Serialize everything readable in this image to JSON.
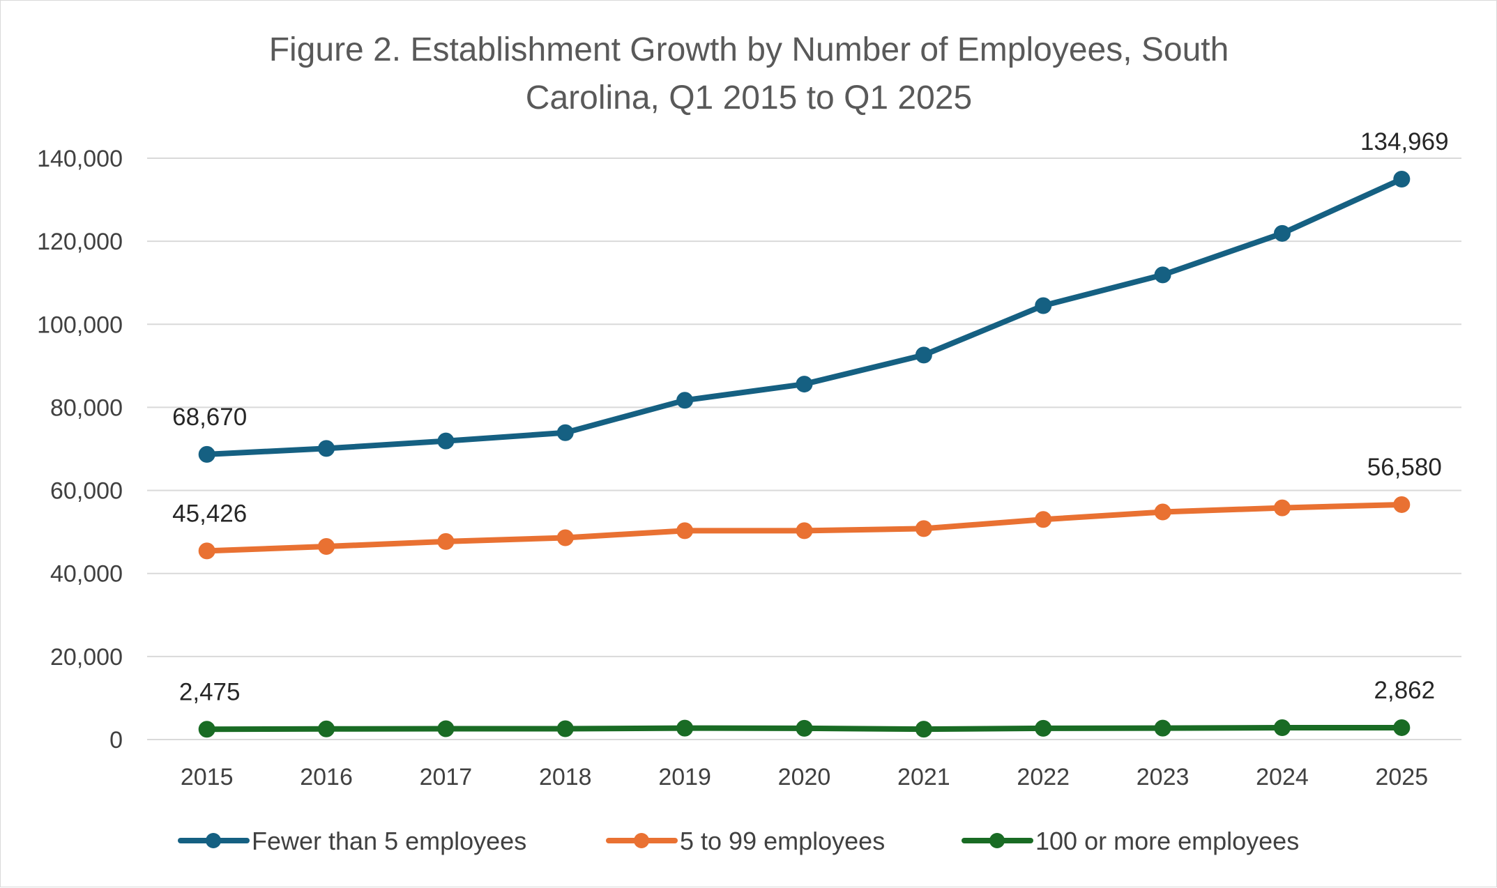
{
  "chart_data": {
    "type": "line",
    "title_lines": [
      "Figure 2. Establishment Growth by Number of Employees, South",
      "Carolina, Q1 2015 to Q1 2025"
    ],
    "xlabel": "",
    "ylabel": "",
    "categories": [
      "2015",
      "2016",
      "2017",
      "2018",
      "2019",
      "2020",
      "2021",
      "2022",
      "2023",
      "2024",
      "2025"
    ],
    "ylim": [
      0,
      140000
    ],
    "yticks": [
      0,
      20000,
      40000,
      60000,
      80000,
      100000,
      120000,
      140000
    ],
    "ytick_labels": [
      "0",
      "20,000",
      "40,000",
      "60,000",
      "80,000",
      "100,000",
      "120,000",
      "140,000"
    ],
    "grid": true,
    "legend_position": "bottom",
    "series": [
      {
        "name": "Fewer than 5 employees",
        "color": "#156082",
        "values": [
          68670,
          70100,
          71900,
          73900,
          81700,
          85600,
          92600,
          104500,
          111900,
          121900,
          134969
        ],
        "data_labels": [
          {
            "index": 0,
            "text": "68,670"
          },
          {
            "index": 10,
            "text": "134,969"
          }
        ]
      },
      {
        "name": "5 to 99 employees",
        "color": "#E97132",
        "values": [
          45426,
          46500,
          47700,
          48600,
          50300,
          50300,
          50800,
          53000,
          54800,
          55800,
          56580
        ],
        "data_labels": [
          {
            "index": 0,
            "text": "45,426"
          },
          {
            "index": 10,
            "text": "56,580"
          }
        ]
      },
      {
        "name": "100 or more employees",
        "color": "#196B24",
        "values": [
          2475,
          2550,
          2600,
          2600,
          2750,
          2700,
          2500,
          2700,
          2750,
          2850,
          2862
        ],
        "data_labels": [
          {
            "index": 0,
            "text": "2,475"
          },
          {
            "index": 10,
            "text": "2,862"
          }
        ]
      }
    ]
  }
}
